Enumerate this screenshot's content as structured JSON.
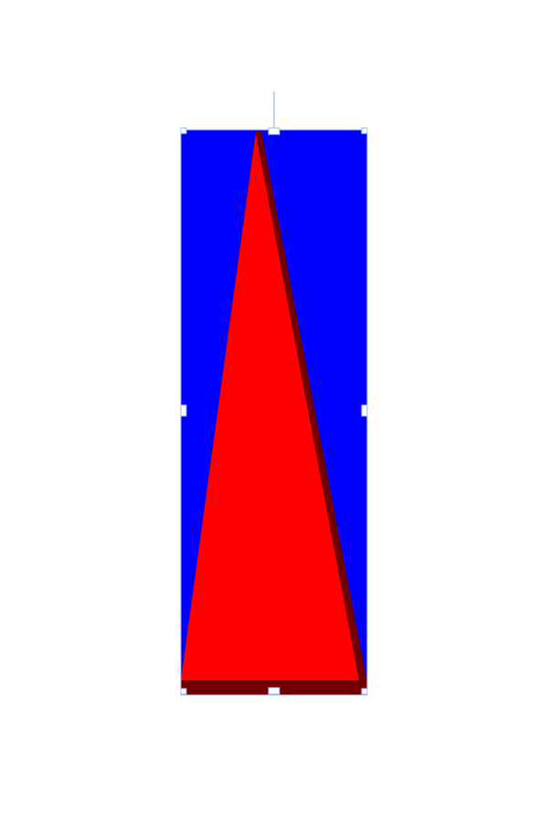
{
  "canvas": {
    "background_color": "#ffffff"
  },
  "shape": {
    "kind": "triangle",
    "fill_color": "#ff0000",
    "shadow_color": "#700000",
    "background_color": "#0000ff",
    "selected": true
  },
  "selection": {
    "frame_color": "#9db7e8",
    "handle_fill": "#ffffff",
    "handle_stroke": "#9db7e8",
    "rotation_handle_color": "#aac4ee"
  }
}
